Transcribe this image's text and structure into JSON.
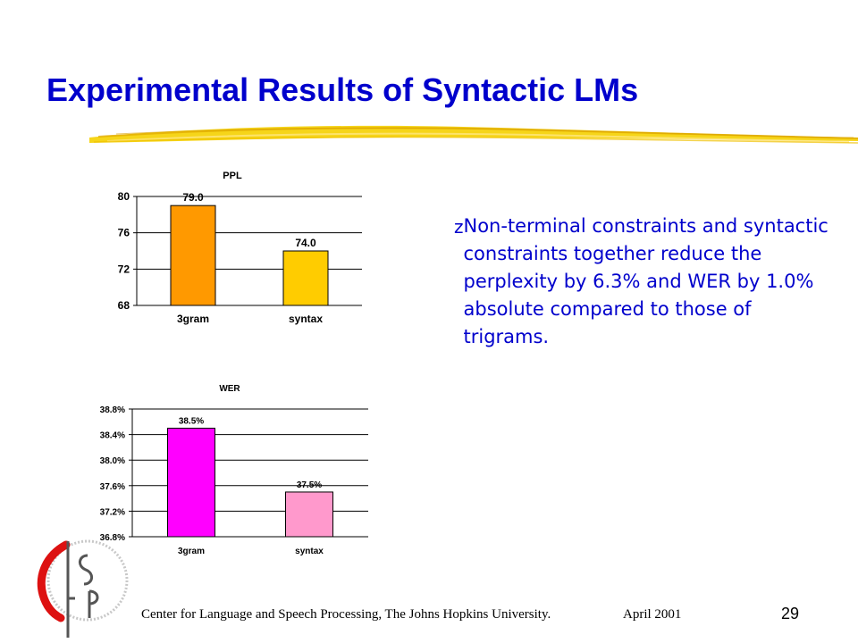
{
  "slide": {
    "title": "Experimental Results of Syntactic LMs",
    "bullet_glyph": "z",
    "bullet_text": "Non-terminal constraints and syntactic constraints together reduce the perplexity by 6.3% and WER by 1.0% absolute compared to those of trigrams.",
    "footer": "Center for Language and Speech Processing, The Johns Hopkins University.",
    "date": "April 2001",
    "page_number": "29",
    "logo_icon": "clsp-logo-icon",
    "title_color": "#0000cc",
    "text_color": "#0000cc",
    "underline_color": "#f2c200"
  },
  "chart_data": [
    {
      "type": "bar",
      "title": "PPL",
      "categories": [
        "3gram",
        "syntax"
      ],
      "values": [
        79.0,
        74.0
      ],
      "data_labels": [
        "79.0",
        "74.0"
      ],
      "colors": [
        "#ff9900",
        "#ffcc00"
      ],
      "yticks": [
        68,
        72,
        76,
        80
      ],
      "ytick_labels": [
        "68",
        "72",
        "76",
        "80"
      ],
      "ylim": [
        68,
        80
      ],
      "grid": true,
      "legend": "none"
    },
    {
      "type": "bar",
      "title": "WER",
      "categories": [
        "3gram",
        "syntax"
      ],
      "values": [
        38.5,
        37.5
      ],
      "data_labels": [
        "38.5%",
        "37.5%"
      ],
      "colors": [
        "#ff00ff",
        "#ff99cc"
      ],
      "yticks": [
        36.8,
        37.2,
        37.6,
        38.0,
        38.4,
        38.8
      ],
      "ytick_labels": [
        "36.8%",
        "37.2%",
        "37.6%",
        "38.0%",
        "38.4%",
        "38.8%"
      ],
      "ylim": [
        36.8,
        38.8
      ],
      "grid": true,
      "legend": "none"
    }
  ]
}
